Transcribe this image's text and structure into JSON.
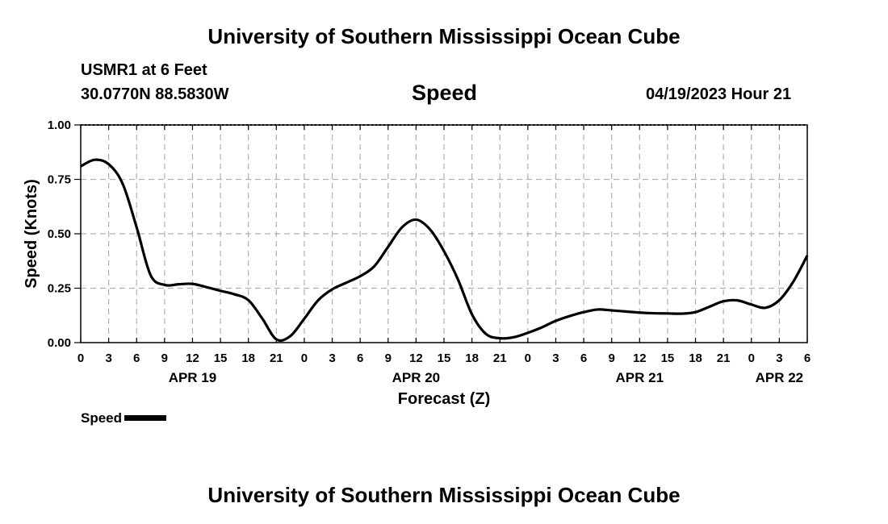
{
  "header": {
    "title": "University of Southern Mississippi Ocean Cube",
    "station": "USMR1 at 6 Feet",
    "coords": "30.0770N  88.5830W",
    "variable": "Speed",
    "datetime": "04/19/2023 Hour 21"
  },
  "footer": {
    "title": "University of Southern Mississippi Ocean Cube"
  },
  "legend": {
    "label": "Speed"
  },
  "colors": {
    "line": "#000000",
    "grid": "#b0b0b0"
  },
  "chart_data": {
    "type": "line",
    "title": "Speed",
    "xlabel": "Forecast (Z)",
    "ylabel": "Speed (Knots)",
    "xlim": [
      0,
      78
    ],
    "ylim": [
      0,
      1
    ],
    "x_unit": "hours from APR 19 00Z",
    "x_ticks": [
      0,
      3,
      6,
      9,
      12,
      15,
      18,
      21,
      24,
      27,
      30,
      33,
      36,
      39,
      42,
      45,
      48,
      51,
      54,
      57,
      60,
      63,
      66,
      69,
      72,
      75,
      78
    ],
    "x_tick_labels": [
      "0",
      "3",
      "6",
      "9",
      "12",
      "15",
      "18",
      "21",
      "0",
      "3",
      "6",
      "9",
      "12",
      "15",
      "18",
      "21",
      "0",
      "3",
      "6",
      "9",
      "12",
      "15",
      "18",
      "21",
      "0",
      "3",
      "6"
    ],
    "y_ticks": [
      0.0,
      0.25,
      0.5,
      0.75,
      1.0
    ],
    "y_tick_labels": [
      "0.00",
      "0.25",
      "0.50",
      "0.75",
      "1.00"
    ],
    "date_labels": [
      {
        "label": "APR 19",
        "x": 12
      },
      {
        "label": "APR 20",
        "x": 36
      },
      {
        "label": "APR 21",
        "x": 60
      },
      {
        "label": "APR 22",
        "x": 75
      }
    ],
    "grid": true,
    "series": [
      {
        "name": "Speed",
        "x": [
          0,
          1.5,
          3,
          4.5,
          6,
          7.5,
          9,
          10.5,
          12,
          13.5,
          15,
          16.5,
          18,
          19.5,
          21,
          22.5,
          24,
          25.5,
          27,
          28.5,
          30,
          31.5,
          33,
          34.5,
          36,
          37.5,
          39,
          40.5,
          42,
          43.5,
          45,
          46.5,
          48,
          49.5,
          51,
          52.5,
          54,
          55.5,
          57,
          58.5,
          60,
          61.5,
          63,
          64.5,
          66,
          67.5,
          69,
          70.5,
          72,
          73.5,
          75,
          76.5,
          78
        ],
        "values": [
          0.81,
          0.84,
          0.82,
          0.73,
          0.53,
          0.31,
          0.265,
          0.268,
          0.27,
          0.255,
          0.238,
          0.222,
          0.195,
          0.11,
          0.015,
          0.03,
          0.11,
          0.195,
          0.245,
          0.275,
          0.305,
          0.35,
          0.44,
          0.53,
          0.565,
          0.52,
          0.42,
          0.29,
          0.13,
          0.04,
          0.02,
          0.025,
          0.045,
          0.07,
          0.1,
          0.122,
          0.14,
          0.152,
          0.148,
          0.143,
          0.138,
          0.135,
          0.134,
          0.133,
          0.14,
          0.165,
          0.19,
          0.194,
          0.175,
          0.16,
          0.195,
          0.28,
          0.4
        ]
      }
    ]
  }
}
